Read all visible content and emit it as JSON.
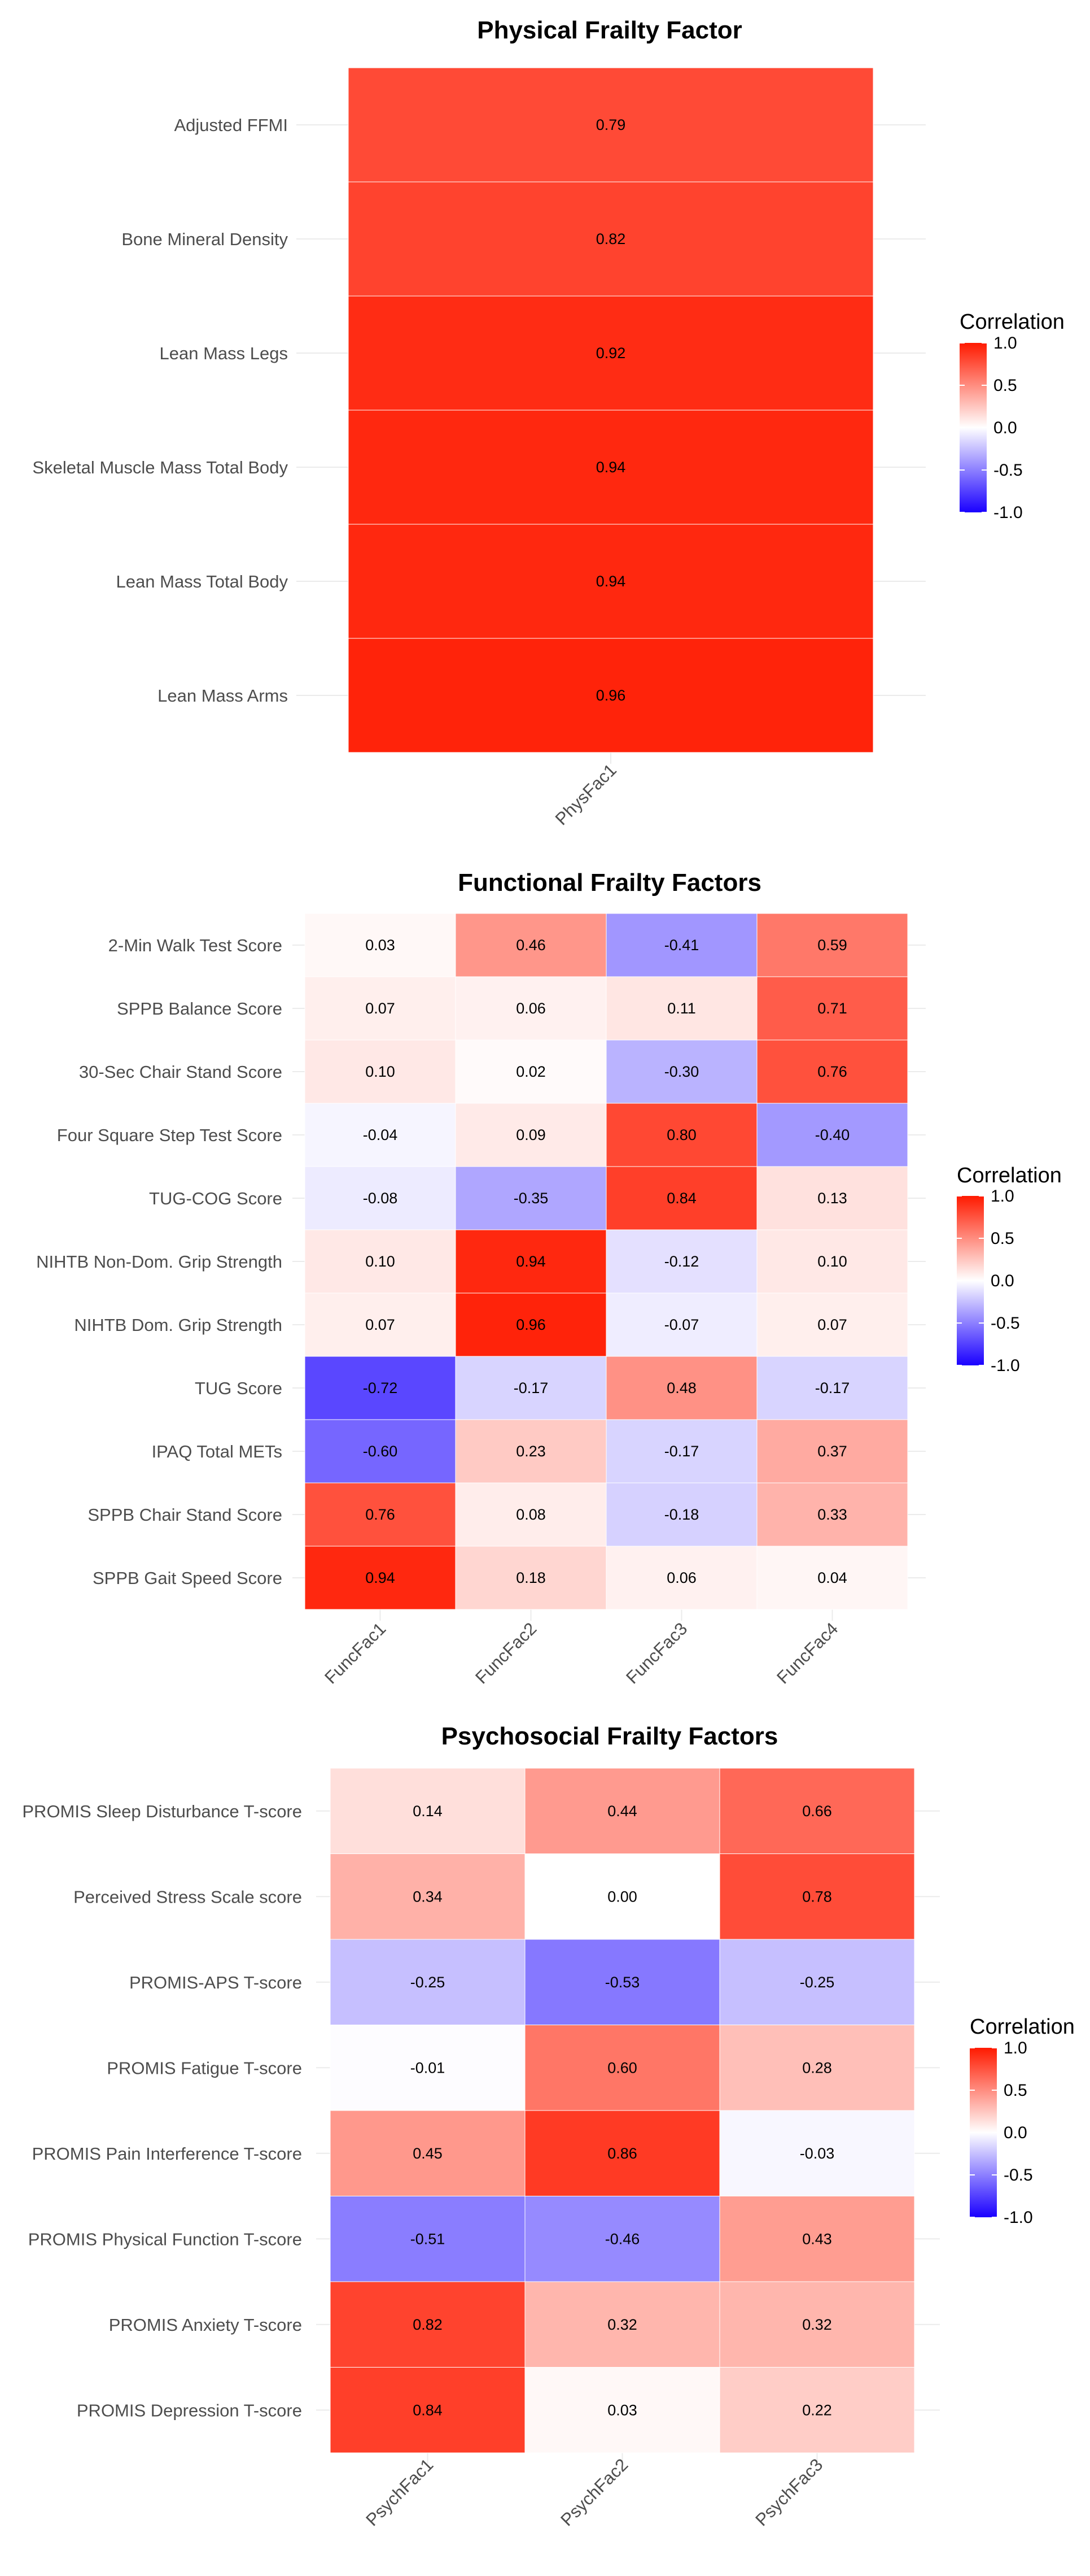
{
  "chart_data": [
    {
      "type": "heatmap",
      "title": "Physical Frailty Factor",
      "columns": [
        "PhysFac1"
      ],
      "rows": [
        "Adjusted FFMI",
        "Bone Mineral Density",
        "Lean Mass Legs",
        "Skeletal Muscle Mass Total Body",
        "Lean Mass Total Body",
        "Lean Mass Arms"
      ],
      "values": [
        [
          0.79
        ],
        [
          0.82
        ],
        [
          0.92
        ],
        [
          0.94
        ],
        [
          0.94
        ],
        [
          0.96
        ]
      ],
      "labels": [
        [
          "0.79"
        ],
        [
          "0.82"
        ],
        [
          "0.92"
        ],
        [
          "0.94"
        ],
        [
          "0.94"
        ],
        [
          "0.96"
        ]
      ],
      "legend": {
        "title": "Correlation",
        "ticks": [
          "1.0",
          "0.5",
          "0.0",
          "-0.5",
          "-1.0"
        ],
        "range": [
          -1,
          1
        ]
      }
    },
    {
      "type": "heatmap",
      "title": "Functional Frailty Factors",
      "columns": [
        "FuncFac1",
        "FuncFac2",
        "FuncFac3",
        "FuncFac4"
      ],
      "rows": [
        "2-Min Walk Test Score",
        "SPPB Balance Score",
        "30-Sec Chair Stand Score",
        "Four Square Step Test Score",
        "TUG-COG Score",
        "NIHTB Non-Dom. Grip Strength",
        "NIHTB Dom. Grip Strength",
        "TUG Score",
        "IPAQ Total METs",
        "SPPB Chair Stand Score",
        "SPPB Gait Speed Score"
      ],
      "values": [
        [
          0.03,
          0.46,
          -0.41,
          0.59
        ],
        [
          0.07,
          0.06,
          0.11,
          0.71
        ],
        [
          0.1,
          0.02,
          -0.3,
          0.76
        ],
        [
          -0.04,
          0.09,
          0.8,
          -0.4
        ],
        [
          -0.08,
          -0.35,
          0.84,
          0.13
        ],
        [
          0.1,
          0.94,
          -0.12,
          0.1
        ],
        [
          0.07,
          0.96,
          -0.07,
          0.07
        ],
        [
          -0.72,
          -0.17,
          0.48,
          -0.17
        ],
        [
          -0.6,
          0.23,
          -0.17,
          0.37
        ],
        [
          0.76,
          0.08,
          -0.18,
          0.33
        ],
        [
          0.94,
          0.18,
          0.06,
          0.04
        ]
      ],
      "labels": [
        [
          "0.03",
          "0.46",
          "-0.41",
          "0.59"
        ],
        [
          "0.07",
          "0.06",
          "0.11",
          "0.71"
        ],
        [
          "0.10",
          "0.02",
          "-0.30",
          "0.76"
        ],
        [
          "-0.04",
          "0.09",
          "0.80",
          "-0.40"
        ],
        [
          "-0.08",
          "-0.35",
          "0.84",
          "0.13"
        ],
        [
          "0.10",
          "0.94",
          "-0.12",
          "0.10"
        ],
        [
          "0.07",
          "0.96",
          "-0.07",
          "0.07"
        ],
        [
          "-0.72",
          "-0.17",
          "0.48",
          "-0.17"
        ],
        [
          "-0.60",
          "0.23",
          "-0.17",
          "0.37"
        ],
        [
          "0.76",
          "0.08",
          "-0.18",
          "0.33"
        ],
        [
          "0.94",
          "0.18",
          "0.06",
          "0.04"
        ]
      ],
      "legend": {
        "title": "Correlation",
        "ticks": [
          "1.0",
          "0.5",
          "0.0",
          "-0.5",
          "-1.0"
        ],
        "range": [
          -1,
          1
        ]
      }
    },
    {
      "type": "heatmap",
      "title": "Psychosocial Frailty Factors",
      "columns": [
        "PsychFac1",
        "PsychFac2",
        "PsychFac3"
      ],
      "rows": [
        "PROMIS Sleep Disturbance T-score",
        "Perceived Stress Scale score",
        "PROMIS-APS T-score",
        "PROMIS Fatigue T-score",
        "PROMIS Pain Interference T-score",
        "PROMIS Physical Function T-score",
        "PROMIS Anxiety T-score",
        "PROMIS Depression T-score"
      ],
      "values": [
        [
          0.14,
          0.44,
          0.66
        ],
        [
          0.34,
          0.0,
          0.78
        ],
        [
          -0.25,
          -0.53,
          -0.25
        ],
        [
          -0.01,
          0.6,
          0.28
        ],
        [
          0.45,
          0.86,
          -0.03
        ],
        [
          -0.51,
          -0.46,
          0.43
        ],
        [
          0.82,
          0.32,
          0.32
        ],
        [
          0.84,
          0.03,
          0.22
        ]
      ],
      "labels": [
        [
          "0.14",
          "0.44",
          "0.66"
        ],
        [
          "0.34",
          "0.00",
          "0.78"
        ],
        [
          "-0.25",
          "-0.53",
          "-0.25"
        ],
        [
          "-0.01",
          "0.60",
          "0.28"
        ],
        [
          "0.45",
          "0.86",
          "-0.03"
        ],
        [
          "-0.51",
          "-0.46",
          "0.43"
        ],
        [
          "0.82",
          "0.32",
          "0.32"
        ],
        [
          "0.84",
          "0.03",
          "0.22"
        ]
      ],
      "legend": {
        "title": "Correlation",
        "ticks": [
          "1.0",
          "0.5",
          "0.0",
          "-0.5",
          "-1.0"
        ],
        "range": [
          -1,
          1
        ]
      }
    }
  ],
  "colors": {
    "low": "#1a00ff",
    "mid": "#ffffff",
    "high": "#ff1a00",
    "grid": "#ebebeb"
  }
}
